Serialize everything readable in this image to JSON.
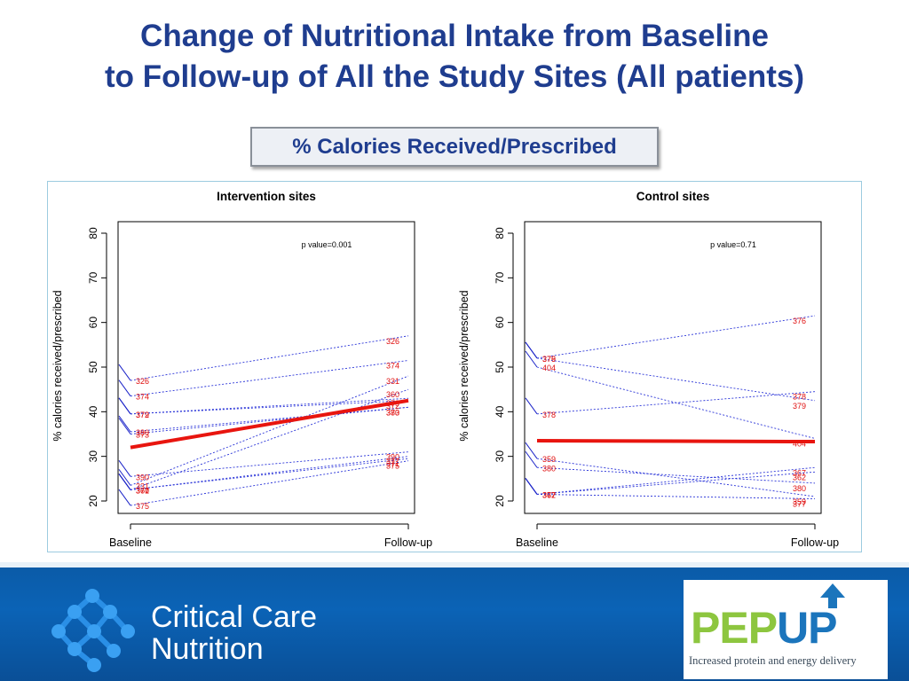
{
  "slide": {
    "title_line1": "Change of Nutritional Intake from Baseline",
    "title_line2": "to Follow-up of All the Study Sites (All patients)",
    "subtitle": "% Calories Received/Prescribed"
  },
  "footer": {
    "left_logo_text_line1": "Critical Care",
    "left_logo_text_line2": "Nutrition",
    "right_logo_part1": "PEP",
    "right_logo_part2": "UP",
    "right_logo_tagline": "Increased protein and energy delivery",
    "colors": {
      "pep_green": "#8dc63f",
      "up_blue": "#1b75bc",
      "footer_blue": "#0b5aa6"
    }
  },
  "chart_data": [
    {
      "type": "line",
      "title": "Intervention sites",
      "ylabel": "% calories received/prescribed",
      "categories": [
        "Baseline",
        "Follow-up"
      ],
      "ylim": [
        20,
        80
      ],
      "yticks": [
        20,
        30,
        40,
        50,
        60,
        70,
        80
      ],
      "annotation": "p value=0.001",
      "series": [
        {
          "name": "326",
          "values": [
            47,
            57
          ]
        },
        {
          "name": "374",
          "values": [
            43.5,
            51.5
          ]
        },
        {
          "name": "331",
          "values": [
            23.5,
            48
          ]
        },
        {
          "name": "360",
          "values": [
            22.5,
            45
          ]
        },
        {
          "name": "379",
          "values": [
            39.5,
            43
          ]
        },
        {
          "name": "373",
          "values": [
            35,
            41
          ]
        },
        {
          "name": "380",
          "values": [
            35.5,
            41
          ]
        },
        {
          "name": "372",
          "values": [
            39.5,
            42.5
          ]
        },
        {
          "name": "390",
          "values": [
            25.5,
            31
          ]
        },
        {
          "name": "377",
          "values": [
            22.5,
            30
          ]
        },
        {
          "name": "371",
          "values": [
            22.5,
            29.5
          ]
        },
        {
          "name": "375",
          "values": [
            19,
            29
          ]
        }
      ],
      "mean_line": {
        "values": [
          32,
          42.5
        ],
        "color": "#e8150f"
      }
    },
    {
      "type": "line",
      "title": "Control sites",
      "ylabel": "% calories received/prescribed",
      "categories": [
        "Baseline",
        "Follow-up"
      ],
      "ylim": [
        20,
        80
      ],
      "yticks": [
        20,
        30,
        40,
        50,
        60,
        70,
        80
      ],
      "annotation": "p value=0.71",
      "series": [
        {
          "name": "376",
          "values": [
            52,
            61.5
          ]
        },
        {
          "name": "378",
          "values": [
            39.5,
            44.5
          ]
        },
        {
          "name": "379",
          "values": [
            52,
            42.5
          ]
        },
        {
          "name": "404",
          "values": [
            50,
            34
          ]
        },
        {
          "name": "359",
          "values": [
            29.5,
            21
          ]
        },
        {
          "name": "380",
          "values": [
            27.5,
            24
          ]
        },
        {
          "name": "367",
          "values": [
            21.5,
            27.5
          ]
        },
        {
          "name": "362",
          "values": [
            21.5,
            26.5
          ]
        },
        {
          "name": "377",
          "values": [
            21.5,
            20.5
          ]
        }
      ],
      "mean_line": {
        "values": [
          33.5,
          33.3
        ],
        "color": "#e8150f"
      }
    }
  ]
}
